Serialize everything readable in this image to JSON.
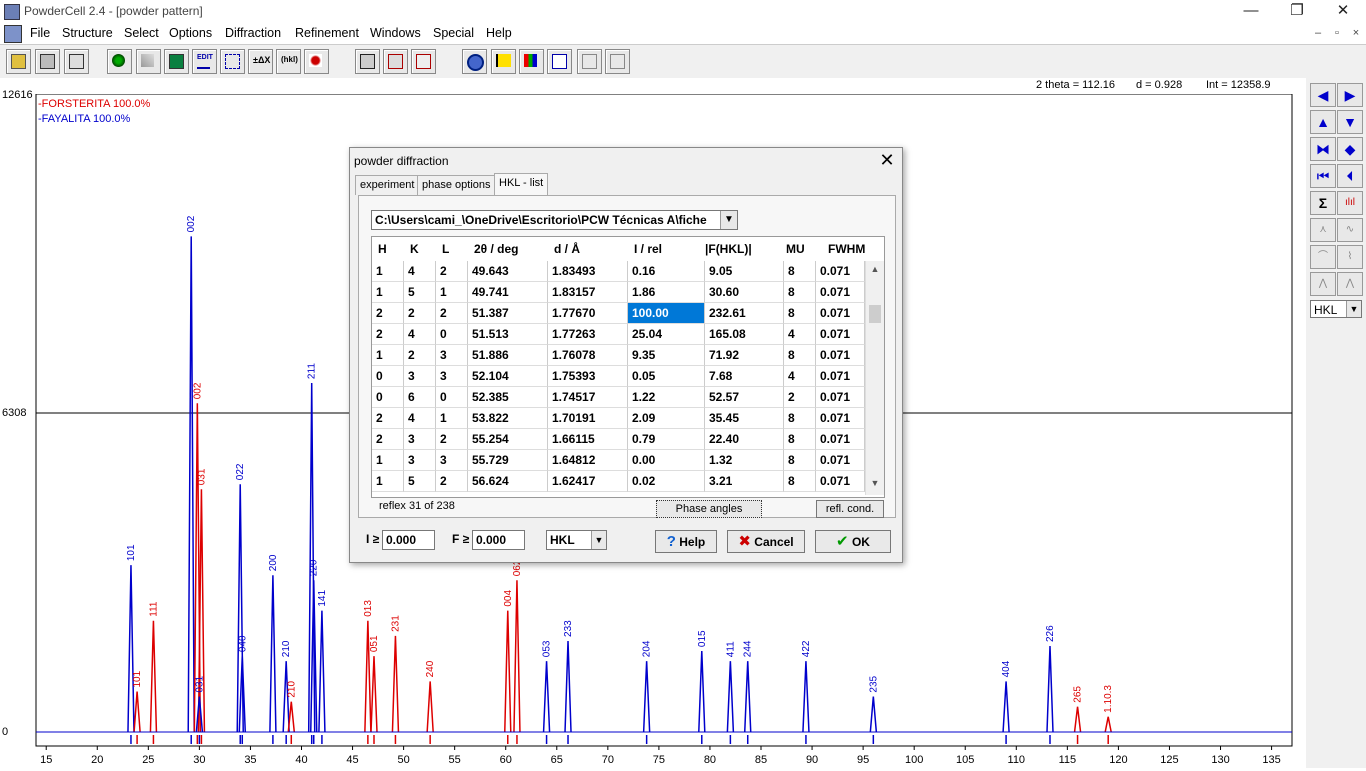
{
  "window": {
    "title": "PowderCell 2.4 - [powder pattern]",
    "minimize": "—",
    "restore": "❐",
    "close": "✕"
  },
  "menu": [
    "File",
    "Structure",
    "Select",
    "Options",
    "Diffraction",
    "Refinement",
    "Windows",
    "Special",
    "Help"
  ],
  "status": {
    "two_theta": "2 theta = 112.16",
    "d": "d = 0.928",
    "int": "Int =  12358.9"
  },
  "plot": {
    "y_top_label": "12616",
    "y_mid_label": "6308",
    "y_zero_label": "0",
    "legend": [
      {
        "text": "-FORSTERITA  100.0%",
        "color": "#dd0000"
      },
      {
        "text": "-FAYALITA  100.0%",
        "color": "#0000cc"
      }
    ],
    "x_ticks": [
      "15",
      "20",
      "25",
      "30",
      "35",
      "40",
      "45",
      "50",
      "55",
      "60",
      "65",
      "70",
      "75",
      "80",
      "85",
      "90",
      "95",
      "100",
      "105",
      "110",
      "115",
      "120",
      "125",
      "130",
      "135"
    ],
    "x_range": [
      14,
      137
    ],
    "y_max": 12616,
    "peak_labels": [
      {
        "x": 23.3,
        "label": "101",
        "color": "#0000cc",
        "h": 3300
      },
      {
        "x": 23.9,
        "label": "101",
        "color": "#dd0000",
        "h": 800
      },
      {
        "x": 25.5,
        "label": "111",
        "color": "#dd0000",
        "h": 2200
      },
      {
        "x": 29.2,
        "label": "002",
        "color": "#0000cc",
        "h": 9800
      },
      {
        "x": 29.8,
        "label": "002",
        "color": "#dd0000",
        "h": 6500
      },
      {
        "x": 30.2,
        "label": "031",
        "color": "#dd0000",
        "h": 4800
      },
      {
        "x": 30.0,
        "label": "031",
        "color": "#0000cc",
        "h": 700
      },
      {
        "x": 34.0,
        "label": "022",
        "color": "#0000cc",
        "h": 4900
      },
      {
        "x": 34.2,
        "label": "040",
        "color": "#0000cc",
        "h": 1500
      },
      {
        "x": 37.2,
        "label": "200",
        "color": "#0000cc",
        "h": 3100
      },
      {
        "x": 38.5,
        "label": "210",
        "color": "#0000cc",
        "h": 1400
      },
      {
        "x": 39.0,
        "label": "210",
        "color": "#dd0000",
        "h": 600
      },
      {
        "x": 41.0,
        "label": "211",
        "color": "#0000cc",
        "h": 6900
      },
      {
        "x": 41.2,
        "label": "220",
        "color": "#0000cc",
        "h": 3000
      },
      {
        "x": 42.0,
        "label": "141",
        "color": "#0000cc",
        "h": 2400
      },
      {
        "x": 46.5,
        "label": "013",
        "color": "#dd0000",
        "h": 2200
      },
      {
        "x": 47.1,
        "label": "051",
        "color": "#dd0000",
        "h": 1500
      },
      {
        "x": 49.2,
        "label": "231",
        "color": "#dd0000",
        "h": 1900
      },
      {
        "x": 52.6,
        "label": "240",
        "color": "#dd0000",
        "h": 1000
      },
      {
        "x": 61.1,
        "label": "062",
        "color": "#dd0000",
        "h": 3000
      },
      {
        "x": 60.2,
        "label": "004",
        "color": "#dd0000",
        "h": 2400
      },
      {
        "x": 64.0,
        "label": "053",
        "color": "#0000cc",
        "h": 1400
      },
      {
        "x": 66.1,
        "label": "233",
        "color": "#0000cc",
        "h": 1800
      },
      {
        "x": 73.8,
        "label": "204",
        "color": "#0000cc",
        "h": 1400
      },
      {
        "x": 79.2,
        "label": "015",
        "color": "#0000cc",
        "h": 1600
      },
      {
        "x": 82.0,
        "label": "411",
        "color": "#0000cc",
        "h": 1400
      },
      {
        "x": 83.7,
        "label": "244",
        "color": "#0000cc",
        "h": 1400
      },
      {
        "x": 89.4,
        "label": "422",
        "color": "#0000cc",
        "h": 1400
      },
      {
        "x": 96.0,
        "label": "235",
        "color": "#0000cc",
        "h": 700
      },
      {
        "x": 109.0,
        "label": "404",
        "color": "#0000cc",
        "h": 1000
      },
      {
        "x": 113.3,
        "label": "226",
        "color": "#0000cc",
        "h": 1700
      },
      {
        "x": 116.0,
        "label": "265",
        "color": "#dd0000",
        "h": 500
      },
      {
        "x": 119.0,
        "label": "1.10.3",
        "color": "#dd0000",
        "h": 300
      }
    ]
  },
  "dialog": {
    "title": "powder diffraction",
    "close": "✕",
    "tabs": [
      "experiment",
      "phase options",
      "HKL - list"
    ],
    "path": "C:\\Users\\cami_\\OneDrive\\Escritorio\\PCW Técnicas A\\fiche",
    "columns": [
      "H",
      "K",
      "L",
      "2θ / deg",
      "d / Å",
      "I / rel",
      "|F(HKL)|",
      "MU",
      "FWHM"
    ],
    "rows": [
      [
        "1",
        "4",
        "2",
        "49.643",
        "1.83493",
        "0.16",
        "9.05",
        "8",
        "0.071"
      ],
      [
        "1",
        "5",
        "1",
        "49.741",
        "1.83157",
        "1.86",
        "30.60",
        "8",
        "0.071"
      ],
      [
        "2",
        "2",
        "2",
        "51.387",
        "1.77670",
        "100.00",
        "232.61",
        "8",
        "0.071"
      ],
      [
        "2",
        "4",
        "0",
        "51.513",
        "1.77263",
        "25.04",
        "165.08",
        "4",
        "0.071"
      ],
      [
        "1",
        "2",
        "3",
        "51.886",
        "1.76078",
        "9.35",
        "71.92",
        "8",
        "0.071"
      ],
      [
        "0",
        "3",
        "3",
        "52.104",
        "1.75393",
        "0.05",
        "7.68",
        "4",
        "0.071"
      ],
      [
        "0",
        "6",
        "0",
        "52.385",
        "1.74517",
        "1.22",
        "52.57",
        "2",
        "0.071"
      ],
      [
        "2",
        "4",
        "1",
        "53.822",
        "1.70191",
        "2.09",
        "35.45",
        "8",
        "0.071"
      ],
      [
        "2",
        "3",
        "2",
        "55.254",
        "1.66115",
        "0.79",
        "22.40",
        "8",
        "0.071"
      ],
      [
        "1",
        "3",
        "3",
        "55.729",
        "1.64812",
        "0.00",
        "1.32",
        "8",
        "0.071"
      ],
      [
        "1",
        "5",
        "2",
        "56.624",
        "1.62417",
        "0.02",
        "3.21",
        "8",
        "0.071"
      ]
    ],
    "reflex_status": "reflex  31 of 238",
    "phase_angles": "Phase angles",
    "refl_cond": "refl. cond.",
    "i_label": "I ≥",
    "i_value": "0.000",
    "f_label": "F ≥",
    "f_value": "0.000",
    "hkl_select": "HKL",
    "help": "Help",
    "cancel": "Cancel",
    "ok": "OK"
  },
  "right_panel": {
    "hkl_select": "HKL"
  }
}
